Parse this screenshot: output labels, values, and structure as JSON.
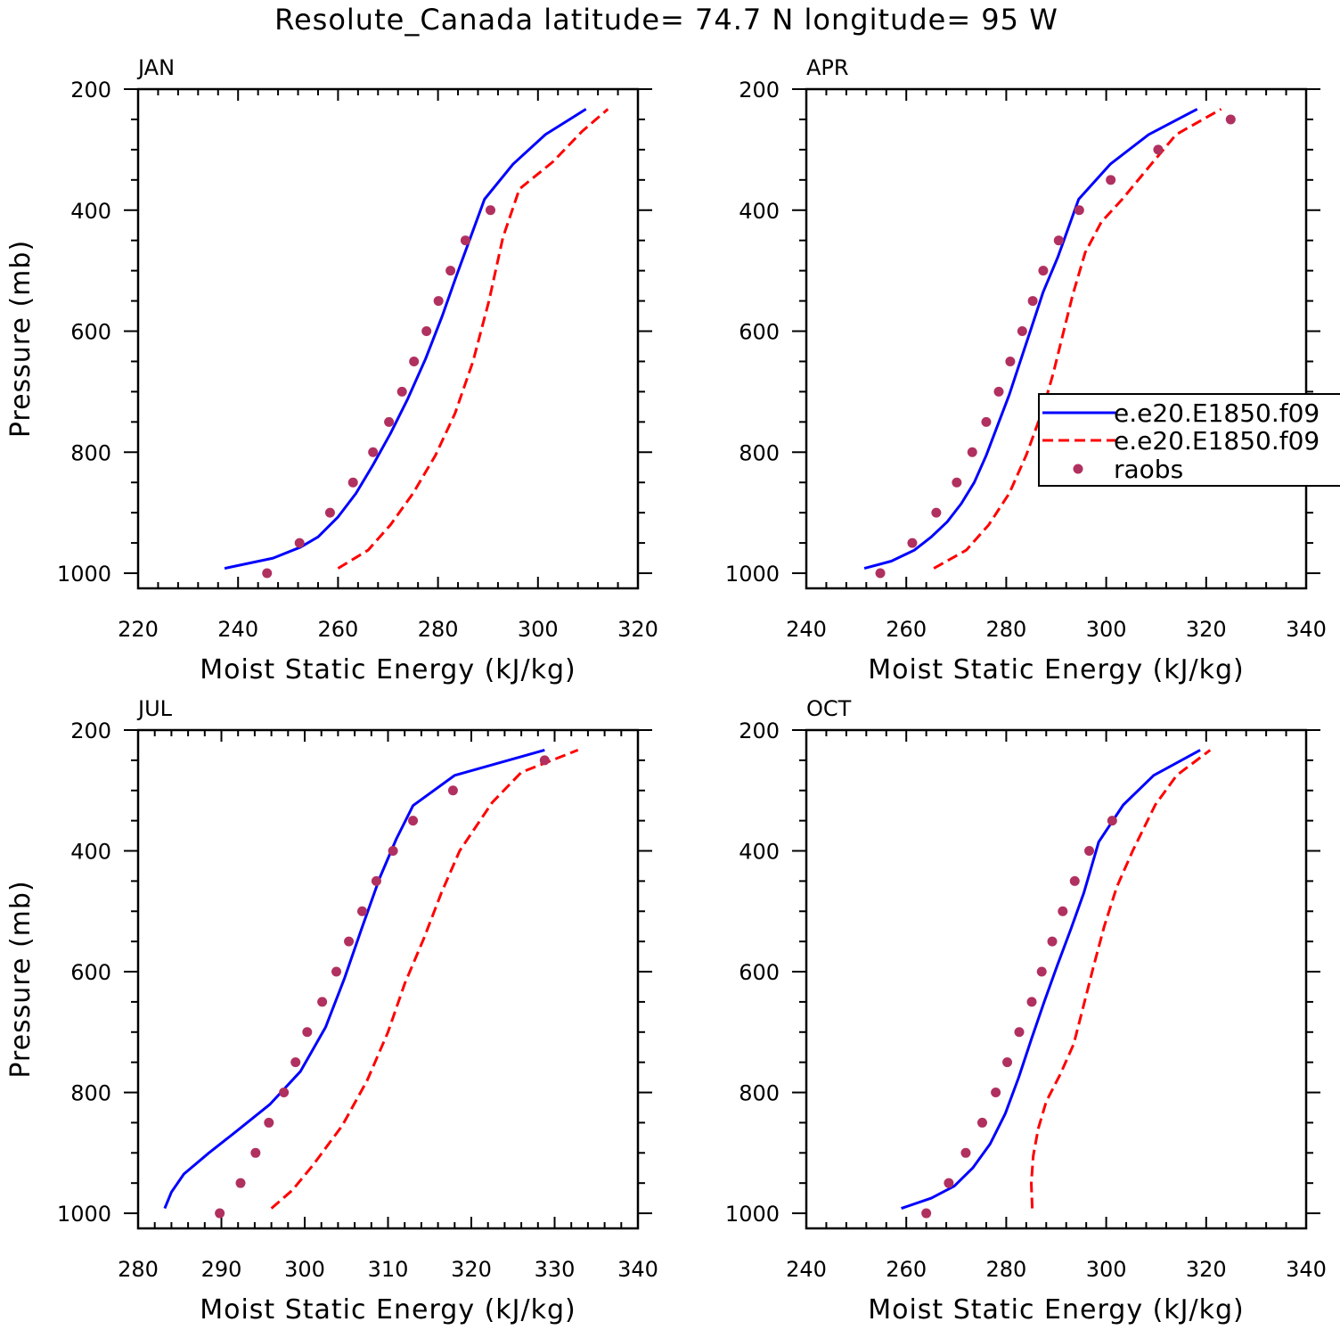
{
  "figure": {
    "title": "Resolute_Canada  latitude= 74.7 N longitude= 95 W",
    "legend": {
      "entries": [
        "e.e20.E1850.f09",
        "e.e20.E1850.f09",
        "raobs"
      ],
      "styles": [
        "solid",
        "dashed",
        "dot"
      ],
      "colors": [
        "#0000ff",
        "#ff0000",
        "#b03060"
      ],
      "panel": "APR"
    }
  },
  "chart_data": [
    {
      "type": "line",
      "title": "JAN",
      "xlabel": "Moist Static Energy (kJ/kg)",
      "ylabel": "Pressure (mb)",
      "xlim": [
        220,
        320
      ],
      "ylim": [
        1025,
        200
      ],
      "xticks": [
        220,
        240,
        260,
        280,
        300,
        320
      ],
      "yticks": [
        200,
        400,
        600,
        800,
        1000
      ],
      "series": [
        {
          "style": "solid",
          "color": "#0000ff",
          "x": [
            237.3,
            247,
            252.5,
            256,
            260,
            263.6,
            267,
            270.5,
            274,
            277.5,
            280.8,
            283.8,
            286.5,
            289.3,
            295,
            301.5,
            309.6
          ],
          "y": [
            992,
            975,
            957,
            940,
            907,
            868,
            821,
            769,
            711,
            646,
            576,
            506,
            445,
            382,
            324,
            275,
            233
          ]
        },
        {
          "style": "dashed",
          "color": "#ff0000",
          "x": [
            260,
            266,
            270.5,
            275,
            279.5,
            283.4,
            287,
            290.2,
            293,
            296.3,
            303,
            308.8,
            314
          ],
          "y": [
            992,
            962,
            920,
            868,
            805,
            736,
            650,
            550,
            445,
            365,
            320,
            270,
            233
          ]
        },
        {
          "style": "dot",
          "color": "#b03060",
          "x": [
            245.8,
            252.3,
            258.4,
            263,
            267,
            270.2,
            272.8,
            275.2,
            277.7,
            280.1,
            282.5,
            285.5,
            290.5
          ],
          "y": [
            1000,
            950,
            900,
            850,
            800,
            750,
            700,
            650,
            600,
            550,
            500,
            450,
            400
          ]
        }
      ]
    },
    {
      "type": "line",
      "title": "APR",
      "xlabel": "Moist Static Energy (kJ/kg)",
      "ylabel": "",
      "xlim": [
        240,
        340
      ],
      "ylim": [
        1025,
        200
      ],
      "xticks": [
        240,
        260,
        280,
        300,
        320,
        340
      ],
      "yticks": [
        200,
        400,
        600,
        800,
        1000
      ],
      "series": [
        {
          "style": "solid",
          "color": "#0000ff",
          "x": [
            251.6,
            257,
            261.6,
            265,
            268.2,
            271,
            273.6,
            276,
            278.3,
            280.6,
            282.8,
            285,
            287.4,
            290.3,
            294.5,
            300.8,
            308.5,
            318.2
          ],
          "y": [
            992,
            980,
            962,
            940,
            915,
            885,
            850,
            805,
            755,
            705,
            650,
            595,
            535,
            478,
            382,
            324,
            275,
            233
          ]
        },
        {
          "style": "dashed",
          "color": "#ff0000",
          "x": [
            265.5,
            272,
            276.5,
            280.6,
            284,
            287.3,
            289.4,
            291.2,
            293.3,
            295.8,
            299,
            303.2,
            309,
            314,
            323
          ],
          "y": [
            992,
            962,
            920,
            868,
            805,
            730,
            670,
            610,
            540,
            470,
            420,
            382,
            324,
            275,
            233
          ]
        },
        {
          "style": "dot",
          "color": "#b03060",
          "x": [
            254.8,
            261.2,
            266,
            270.1,
            273.2,
            276,
            278.5,
            280.8,
            283.2,
            285.3,
            287.4,
            290.5,
            294.6,
            300.9,
            310.4,
            324.9
          ],
          "y": [
            1000,
            950,
            900,
            850,
            800,
            750,
            700,
            650,
            600,
            550,
            500,
            450,
            400,
            350,
            300,
            250
          ]
        }
      ]
    },
    {
      "type": "line",
      "title": "JUL",
      "xlabel": "Moist Static Energy (kJ/kg)",
      "ylabel": "Pressure (mb)",
      "xlim": [
        280,
        340
      ],
      "ylim": [
        1025,
        200
      ],
      "xticks": [
        280,
        290,
        300,
        310,
        320,
        330,
        340
      ],
      "yticks": [
        200,
        400,
        600,
        800,
        1000
      ],
      "series": [
        {
          "style": "solid",
          "color": "#0000ff",
          "x": [
            283.2,
            284,
            285.5,
            288.5,
            292,
            295.8,
            299.5,
            302.5,
            304.8,
            306.8,
            309,
            311,
            313,
            318,
            328.8
          ],
          "y": [
            992,
            965,
            935,
            900,
            862,
            820,
            765,
            692,
            610,
            530,
            445,
            380,
            325,
            275,
            233
          ]
        },
        {
          "style": "dashed",
          "color": "#ff0000",
          "x": [
            296,
            298.5,
            301,
            304.5,
            307.5,
            310,
            312,
            314.3,
            316.4,
            318.6,
            322.5,
            326,
            332.8
          ],
          "y": [
            992,
            962,
            920,
            855,
            780,
            700,
            620,
            545,
            470,
            400,
            320,
            270,
            233
          ]
        },
        {
          "style": "dot",
          "color": "#b03060",
          "x": [
            289.8,
            292.3,
            294.1,
            295.7,
            297.5,
            298.9,
            300.3,
            302.1,
            303.8,
            305.3,
            306.9,
            308.6,
            310.6,
            313,
            317.8,
            328.8
          ],
          "y": [
            1000,
            950,
            900,
            850,
            800,
            750,
            700,
            650,
            600,
            550,
            500,
            450,
            400,
            350,
            300,
            250
          ]
        }
      ]
    },
    {
      "type": "line",
      "title": "OCT",
      "xlabel": "Moist Static Energy (kJ/kg)",
      "ylabel": "",
      "xlim": [
        240,
        340
      ],
      "ylim": [
        1025,
        200
      ],
      "xticks": [
        240,
        260,
        280,
        300,
        320,
        340
      ],
      "yticks": [
        200,
        400,
        600,
        800,
        1000
      ],
      "series": [
        {
          "style": "solid",
          "color": "#0000ff",
          "x": [
            259,
            265,
            269.6,
            273.3,
            276.8,
            279.8,
            282.5,
            285.1,
            287.6,
            290.2,
            292.9,
            295.5,
            298.5,
            303.4,
            309.5,
            318.8
          ],
          "y": [
            992,
            975,
            955,
            925,
            885,
            835,
            775,
            710,
            650,
            590,
            530,
            470,
            385,
            324,
            275,
            233
          ]
        },
        {
          "style": "dashed",
          "color": "#ff0000",
          "x": [
            285.2,
            285,
            285.4,
            286.4,
            288,
            290.8,
            293.5,
            295.5,
            297.5,
            299.6,
            302.1,
            305.3,
            309.8,
            314.1,
            320.8
          ],
          "y": [
            992,
            950,
            905,
            860,
            815,
            770,
            720,
            655,
            590,
            525,
            460,
            400,
            324,
            275,
            233
          ]
        },
        {
          "style": "dot",
          "color": "#b03060",
          "x": [
            264,
            268.5,
            271.9,
            275.2,
            277.9,
            280.2,
            282.6,
            285.1,
            287.1,
            289.2,
            291.3,
            293.7,
            296.6,
            301.2
          ],
          "y": [
            1000,
            950,
            900,
            850,
            800,
            750,
            700,
            650,
            600,
            550,
            500,
            450,
            400,
            350
          ]
        }
      ]
    }
  ]
}
